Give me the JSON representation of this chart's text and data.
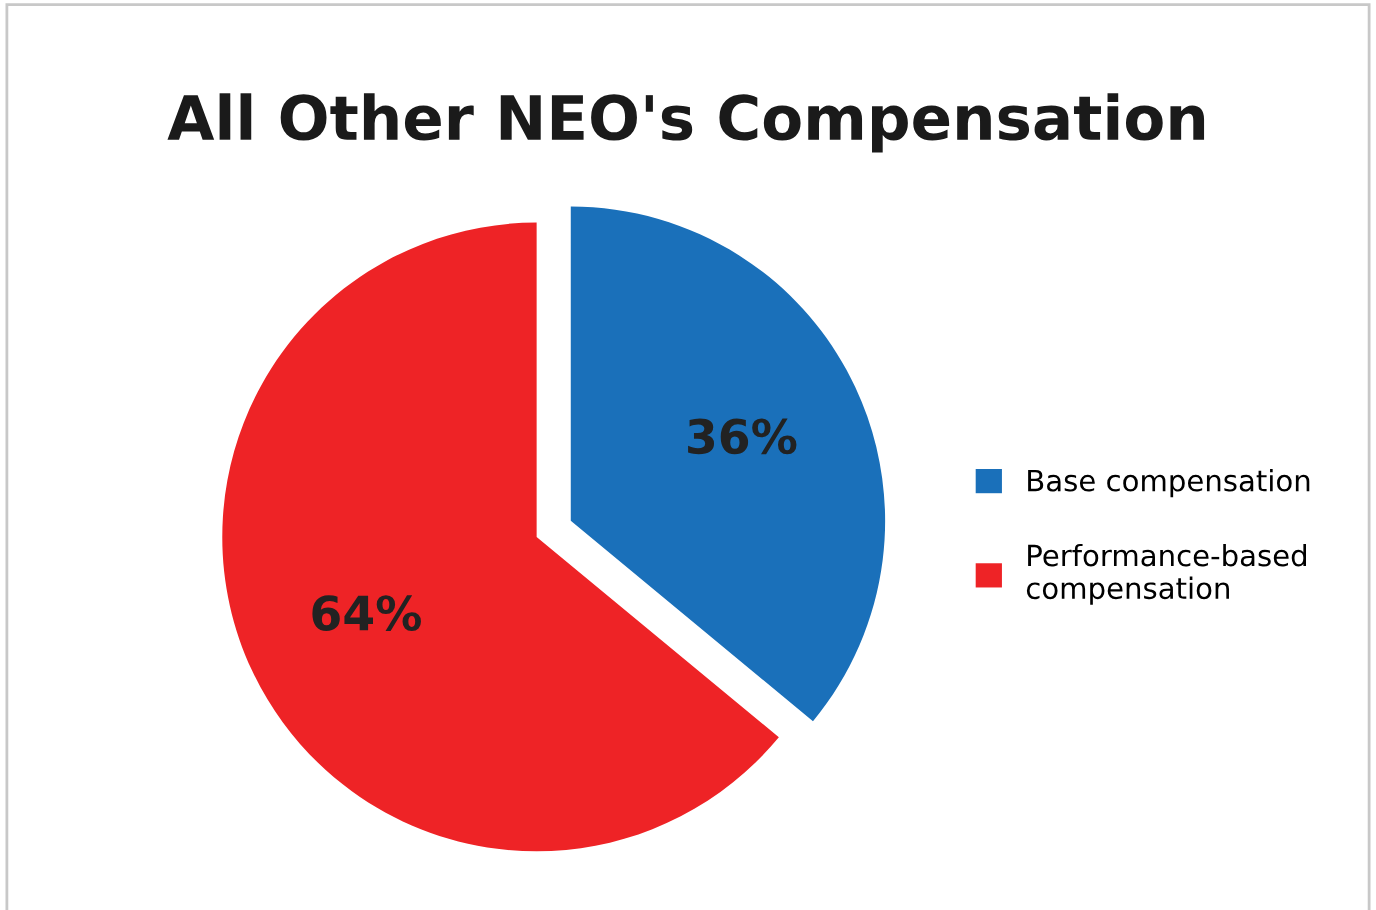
{
  "chart_data": {
    "type": "pie",
    "title": "All Other NEO's Compensation",
    "categories": [
      "Base compensation",
      "Performance-based\ncompensation"
    ],
    "values": [
      36,
      64
    ],
    "colors": [
      "#1a70ba",
      "#ee2326"
    ],
    "value_labels": [
      "36%",
      "64%"
    ],
    "legend": "right"
  }
}
